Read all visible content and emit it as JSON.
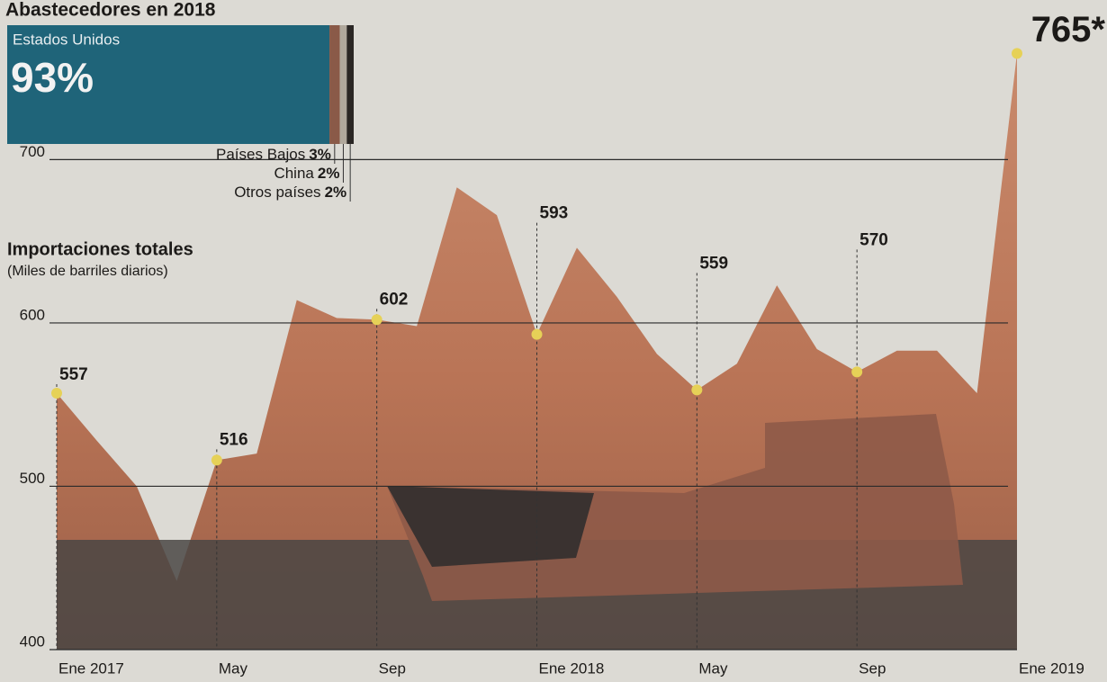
{
  "chart_data": [
    {
      "type": "share-bar",
      "title": "Abastecedores en 2018",
      "categories": [
        "Estados Unidos",
        "Países Bajos",
        "China",
        "Otros países"
      ],
      "values": [
        93,
        3,
        2,
        2
      ],
      "value_labels": [
        "93%",
        "3%",
        "2%",
        "2%"
      ],
      "colors": [
        "#1f6479",
        "#8a5a48",
        "#b0a89c",
        "#2a2624"
      ]
    },
    {
      "type": "area",
      "title": "Importaciones totales",
      "subtitle": "(Miles de barriles diarios)",
      "categories": [
        "Ene 2017",
        null,
        null,
        null,
        "May",
        null,
        null,
        null,
        "Sep",
        null,
        null,
        null,
        "Ene 2018",
        null,
        null,
        null,
        "May",
        null,
        null,
        null,
        "Sep",
        null,
        null,
        null,
        "Ene 2019"
      ],
      "values": [
        557,
        528,
        500,
        442,
        516,
        520,
        614,
        603,
        602,
        598,
        683,
        666,
        593,
        646,
        616,
        581,
        559,
        575,
        623,
        584,
        570,
        583,
        583,
        557,
        765
      ],
      "value_labels": [
        "557",
        null,
        null,
        null,
        "516",
        null,
        null,
        null,
        "602",
        null,
        null,
        null,
        "593",
        null,
        null,
        null,
        "559",
        null,
        null,
        null,
        "570",
        null,
        null,
        null,
        "765*"
      ],
      "color": "#c47a5c",
      "marker_color": "#e6d157",
      "ylim": [
        400,
        790
      ],
      "yticks": [
        400,
        500,
        600,
        700
      ],
      "grid": true
    }
  ]
}
